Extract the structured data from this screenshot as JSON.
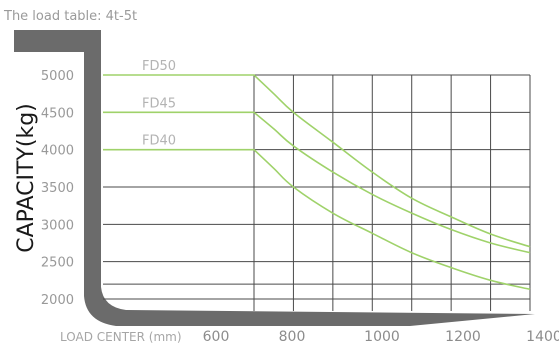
{
  "chart_data": {
    "type": "line",
    "title": "The load table:  4t-5t",
    "ylabel": "CAPACITY(kg)",
    "xlabel": "LOAD CENTER (mm)",
    "x_ticks": [
      600,
      800,
      1000,
      1200,
      1400
    ],
    "y_ticks": [
      2000,
      2500,
      3000,
      3500,
      4000,
      4500,
      5000
    ],
    "xlim": [
      600,
      1400
    ],
    "ylim": [
      1900,
      5150
    ],
    "grid": true,
    "colors": {
      "series": "#9fd26a",
      "frame": "#6b6b6b"
    },
    "series": [
      {
        "name": "FD50",
        "points": [
          [
            600,
            5000
          ],
          [
            700,
            5000
          ],
          [
            750,
            4750
          ],
          [
            800,
            4500
          ],
          [
            900,
            4100
          ],
          [
            1000,
            3700
          ],
          [
            1100,
            3350
          ],
          [
            1200,
            3100
          ],
          [
            1300,
            2870
          ],
          [
            1400,
            2700
          ]
        ]
      },
      {
        "name": "FD45",
        "points": [
          [
            600,
            4500
          ],
          [
            700,
            4500
          ],
          [
            750,
            4280
          ],
          [
            800,
            4050
          ],
          [
            900,
            3700
          ],
          [
            1000,
            3400
          ],
          [
            1100,
            3150
          ],
          [
            1200,
            2930
          ],
          [
            1300,
            2750
          ],
          [
            1400,
            2620
          ]
        ]
      },
      {
        "name": "FD40",
        "points": [
          [
            600,
            4000
          ],
          [
            700,
            4000
          ],
          [
            750,
            3750
          ],
          [
            800,
            3500
          ],
          [
            900,
            3150
          ],
          [
            1000,
            2880
          ],
          [
            1100,
            2620
          ],
          [
            1200,
            2420
          ],
          [
            1300,
            2250
          ],
          [
            1400,
            2130
          ]
        ]
      }
    ]
  }
}
